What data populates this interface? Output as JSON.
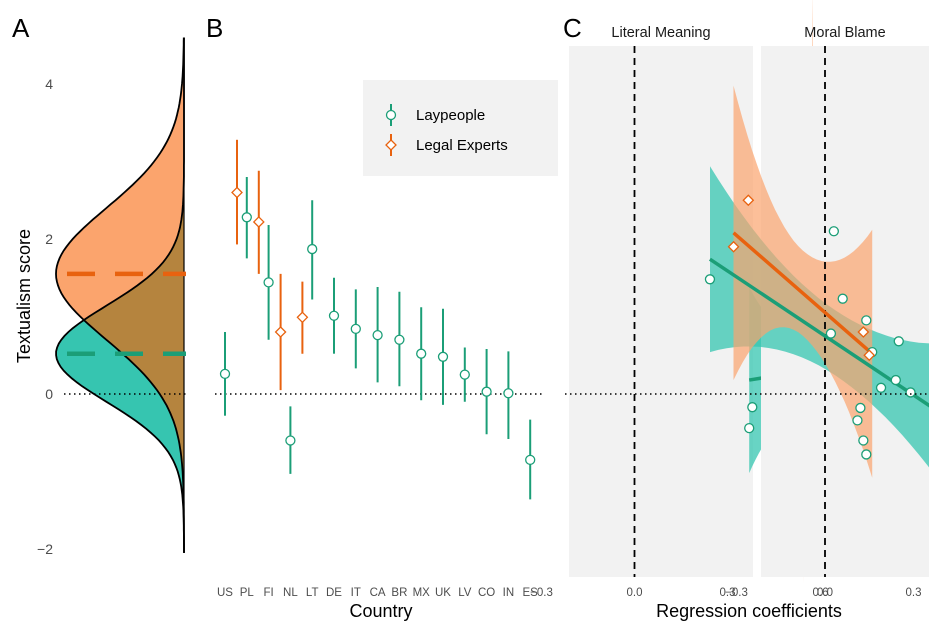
{
  "panel_letters": [
    "A",
    "B",
    "C"
  ],
  "colors": {
    "laypeople": "#1b9e77",
    "laypeople_fill": "#36c5b0",
    "experts": "#e8620f",
    "experts_fill": "#fba46d",
    "overlap_fill": "#b5843e",
    "facet_bg": "#f2f2f2",
    "legend_bg": "#f2f2f2"
  },
  "chart_data": [
    {
      "panel": "A",
      "type": "area",
      "ylabel": "Textualism score",
      "ylim": [
        -2.05,
        4.6
      ],
      "yticks": [
        -2,
        0,
        2,
        4
      ],
      "series": [
        {
          "name": "Laypeople",
          "mean": 0.52,
          "sd": 0.62
        },
        {
          "name": "Legal Experts",
          "mean": 1.55,
          "sd": 0.85
        }
      ]
    },
    {
      "panel": "B",
      "type": "scatter",
      "xlabel": "Country",
      "ylim": [
        -2.05,
        4.6
      ],
      "reference_line_y": 0,
      "legend": {
        "position": "top-right",
        "entries": [
          "Laypeople",
          "Legal Experts"
        ]
      },
      "categories": [
        "US",
        "PL",
        "FI",
        "NL",
        "LT",
        "DE",
        "IT",
        "CA",
        "BR",
        "MX",
        "UK",
        "LV",
        "CO",
        "IN",
        "ES"
      ],
      "series": [
        {
          "name": "Laypeople",
          "marker": "circle",
          "points": [
            {
              "x": "US",
              "y": 0.26,
              "lo": -0.28,
              "hi": 0.8
            },
            {
              "x": "PL",
              "y": 2.28,
              "lo": 1.75,
              "hi": 2.8
            },
            {
              "x": "FI",
              "y": 1.44,
              "lo": 0.7,
              "hi": 2.18
            },
            {
              "x": "NL",
              "y": -0.6,
              "lo": -1.03,
              "hi": -0.16
            },
            {
              "x": "LT",
              "y": 1.87,
              "lo": 1.22,
              "hi": 2.5
            },
            {
              "x": "DE",
              "y": 1.01,
              "lo": 0.52,
              "hi": 1.5
            },
            {
              "x": "IT",
              "y": 0.84,
              "lo": 0.33,
              "hi": 1.35
            },
            {
              "x": "CA",
              "y": 0.76,
              "lo": 0.15,
              "hi": 1.38
            },
            {
              "x": "BR",
              "y": 0.7,
              "lo": 0.1,
              "hi": 1.32
            },
            {
              "x": "MX",
              "y": 0.52,
              "lo": -0.08,
              "hi": 1.12
            },
            {
              "x": "UK",
              "y": 0.48,
              "lo": -0.14,
              "hi": 1.1
            },
            {
              "x": "LV",
              "y": 0.25,
              "lo": -0.1,
              "hi": 0.6
            },
            {
              "x": "CO",
              "y": 0.03,
              "lo": -0.52,
              "hi": 0.58
            },
            {
              "x": "IN",
              "y": 0.01,
              "lo": -0.58,
              "hi": 0.55
            },
            {
              "x": "ES",
              "y": -0.85,
              "lo": -1.36,
              "hi": -0.33
            }
          ]
        },
        {
          "name": "Legal Experts",
          "marker": "diamond",
          "points": [
            {
              "x": "US",
              "y": 2.6,
              "lo": 1.93,
              "hi": 3.28
            },
            {
              "x": "PL",
              "y": 2.22,
              "lo": 1.55,
              "hi": 2.88
            },
            {
              "x": "FI",
              "y": 0.8,
              "lo": 0.05,
              "hi": 1.55
            },
            {
              "x": "NL",
              "y": 0.99,
              "lo": 0.52,
              "hi": 1.45
            }
          ]
        }
      ]
    },
    {
      "panel": "C",
      "type": "scatter",
      "xlabel": "Regression coefficients",
      "ylim": [
        -2.05,
        4.6
      ],
      "xlim": [
        -0.44,
        0.7
      ],
      "xticks": [
        -0.3,
        0.0,
        0.3,
        0.6
      ],
      "xtick_labels": [
        "−0.3",
        "0.0",
        "0.3",
        "0.6"
      ],
      "reference_line_y": 0,
      "reference_line_x": 0,
      "facets": [
        {
          "title": "Literal Meaning",
          "laypeople_points": [
            [
              0.38,
              -0.17
            ],
            [
              0.37,
              -0.44
            ],
            [
              0.44,
              -0.68
            ],
            [
              0.52,
              -0.6
            ],
            [
              0.56,
              -0.36
            ],
            [
              0.63,
              -0.77
            ],
            [
              0.67,
              0.05
            ],
            [
              0.68,
              -0.12
            ],
            [
              0.66,
              -0.05
            ],
            [
              0.55,
              0.16
            ],
            [
              0.54,
              0.47
            ],
            [
              0.54,
              0.68
            ],
            [
              0.53,
              1.0
            ],
            [
              0.52,
              1.23
            ],
            [
              0.51,
              1.49
            ],
            [
              0.5,
              2.1
            ],
            [
              0.53,
              0.8
            ],
            [
              0.55,
              0.35
            ]
          ],
          "experts_points": [
            [
              0.56,
              2.5
            ],
            [
              0.57,
              1.9
            ],
            [
              0.545,
              0.82
            ],
            [
              0.555,
              0.48
            ]
          ],
          "laypeople_fit": {
            "x": [
              0.37,
              0.68
            ],
            "y": [
              0.18,
              0.38
            ]
          },
          "experts_fit": {
            "x": [
              0.545,
              0.575
            ],
            "y": [
              0.45,
              2.28
            ]
          }
        },
        {
          "title": "Moral Blame",
          "laypeople_points": [
            [
              -0.39,
              1.48
            ],
            [
              0.03,
              2.1
            ],
            [
              0.06,
              1.23
            ],
            [
              0.02,
              0.78
            ],
            [
              0.14,
              0.95
            ],
            [
              0.25,
              0.68
            ],
            [
              0.16,
              0.54
            ],
            [
              0.24,
              0.18
            ],
            [
              0.19,
              0.08
            ],
            [
              0.29,
              0.02
            ],
            [
              0.38,
              -0.16
            ],
            [
              0.46,
              -0.44
            ],
            [
              0.42,
              -0.7
            ],
            [
              0.13,
              -0.6
            ],
            [
              0.14,
              -0.78
            ],
            [
              0.12,
              -0.18
            ],
            [
              0.11,
              -0.34
            ]
          ],
          "experts_points": [
            [
              -0.26,
              2.5
            ],
            [
              -0.31,
              1.9
            ],
            [
              0.13,
              0.8
            ],
            [
              0.15,
              0.5
            ]
          ],
          "laypeople_fit": {
            "x": [
              -0.39,
              0.46
            ],
            "y": [
              1.74,
              -0.42
            ]
          },
          "experts_fit": {
            "x": [
              -0.31,
              0.16
            ],
            "y": [
              2.08,
              0.52
            ]
          }
        }
      ]
    }
  ]
}
